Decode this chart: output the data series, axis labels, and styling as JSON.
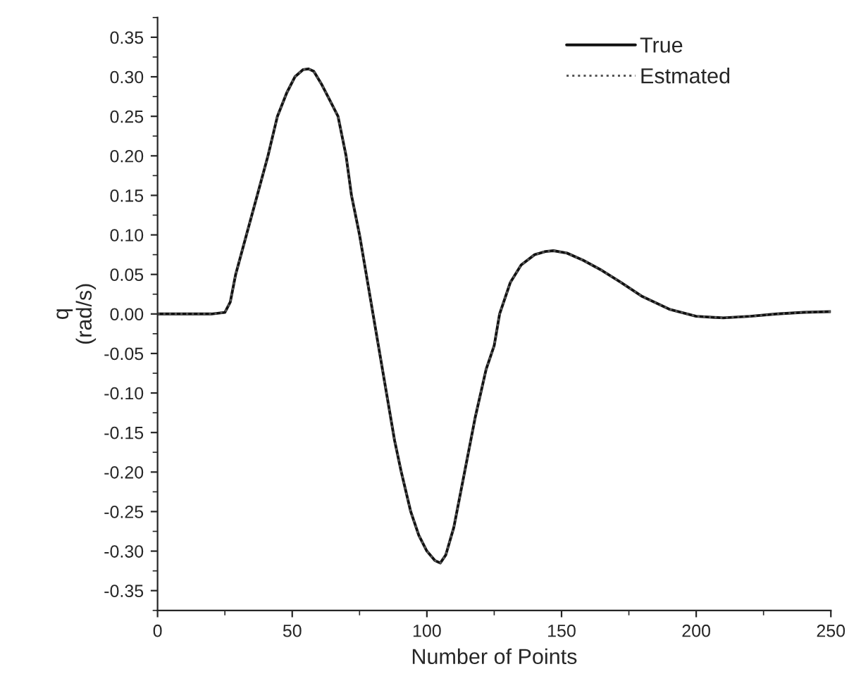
{
  "chart_data": {
    "type": "line",
    "xlabel": "Number of Points",
    "ylabel": "q\n(rad/s)",
    "x": [
      0,
      10,
      20,
      25,
      27,
      29,
      33,
      37,
      41,
      44.5,
      48,
      51,
      54,
      56,
      58,
      61,
      64,
      67,
      70,
      72,
      75,
      78,
      80,
      82,
      85,
      88,
      90.5,
      94,
      97,
      100,
      103,
      105,
      107,
      110,
      114,
      118,
      122,
      125,
      127,
      131,
      135,
      140,
      144,
      147,
      152,
      158,
      165,
      172,
      180,
      190,
      200,
      210,
      220,
      230,
      240,
      250
    ],
    "series": [
      {
        "name": "True",
        "color": "#111111",
        "line_style": "solid",
        "values": [
          0,
          0,
          0,
          0.002,
          0.015,
          0.05,
          0.1,
          0.15,
          0.2,
          0.25,
          0.28,
          0.3,
          0.309,
          0.31,
          0.307,
          0.29,
          0.27,
          0.25,
          0.2,
          0.15,
          0.1,
          0.04,
          0,
          -0.04,
          -0.1,
          -0.16,
          -0.2,
          -0.25,
          -0.28,
          -0.3,
          -0.312,
          -0.315,
          -0.305,
          -0.27,
          -0.2,
          -0.13,
          -0.07,
          -0.04,
          0,
          0.04,
          0.062,
          0.075,
          0.079,
          0.08,
          0.077,
          0.068,
          0.055,
          0.04,
          0.022,
          0.006,
          -0.003,
          -0.005,
          -0.003,
          0,
          0.002,
          0.003
        ]
      },
      {
        "name": "Estmated",
        "color": "#555555",
        "line_style": "dotted",
        "values": [
          0,
          0,
          0,
          0.002,
          0.015,
          0.05,
          0.1,
          0.15,
          0.2,
          0.25,
          0.28,
          0.3,
          0.309,
          0.31,
          0.307,
          0.29,
          0.27,
          0.25,
          0.2,
          0.15,
          0.1,
          0.04,
          0,
          -0.04,
          -0.1,
          -0.16,
          -0.2,
          -0.25,
          -0.28,
          -0.3,
          -0.312,
          -0.315,
          -0.305,
          -0.27,
          -0.2,
          -0.13,
          -0.07,
          -0.04,
          0,
          0.04,
          0.062,
          0.075,
          0.079,
          0.08,
          0.077,
          0.068,
          0.055,
          0.04,
          0.022,
          0.006,
          -0.003,
          -0.005,
          -0.003,
          0,
          0.002,
          0.003
        ]
      }
    ],
    "xlim": [
      0,
      250
    ],
    "xticks": [
      0,
      50,
      100,
      150,
      200,
      250
    ],
    "ylim": [
      -0.375,
      0.375
    ],
    "yticks": [
      {
        "value": -0.35,
        "label": "-0.35"
      },
      {
        "value": -0.3,
        "label": "-0.30"
      },
      {
        "value": -0.25,
        "label": "-0.25"
      },
      {
        "value": -0.2,
        "label": "-0.20"
      },
      {
        "value": -0.15,
        "label": "-0.15"
      },
      {
        "value": -0.1,
        "label": "-0.10"
      },
      {
        "value": -0.05,
        "label": "-0.05"
      },
      {
        "value": 0,
        "label": "0.00"
      },
      {
        "value": 0.05,
        "label": "0.05"
      },
      {
        "value": 0.1,
        "label": "0.10"
      },
      {
        "value": 0.15,
        "label": "0.15"
      },
      {
        "value": 0.2,
        "label": "0.20"
      },
      {
        "value": 0.25,
        "label": "0.25"
      },
      {
        "value": 0.3,
        "label": "0.30"
      },
      {
        "value": 0.35,
        "label": "0.35"
      }
    ],
    "grid": false,
    "legend": "top right",
    "marker": "none"
  }
}
